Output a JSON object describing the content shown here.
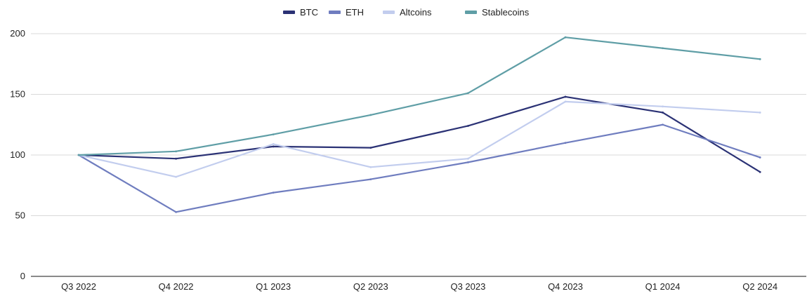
{
  "chart_data": {
    "type": "line",
    "title": "",
    "xlabel": "",
    "ylabel": "",
    "categories": [
      "Q3 2022",
      "Q4 2022",
      "Q1 2023",
      "Q2 2023",
      "Q3 2023",
      "Q4 2023",
      "Q1 2024",
      "Q2 2024"
    ],
    "ylim": [
      0,
      200
    ],
    "yticks": [
      "0",
      "50",
      "100",
      "150",
      "200"
    ],
    "grid": true,
    "legend_position": "top-center",
    "series": [
      {
        "name": "BTC",
        "color": "#2b3275",
        "values": [
          100,
          97,
          107,
          106,
          124,
          148,
          135,
          86
        ]
      },
      {
        "name": "ETH",
        "color": "#6f7dbf",
        "values": [
          100,
          53,
          69,
          80,
          94,
          110,
          125,
          98
        ]
      },
      {
        "name": "Altcoins",
        "color": "#c2cdee",
        "values": [
          100,
          82,
          109,
          90,
          97,
          144,
          140,
          135
        ]
      },
      {
        "name": "Stablecoins",
        "color": "#5f9ea6",
        "values": [
          100,
          103,
          117,
          133,
          151,
          197,
          188,
          179
        ]
      }
    ]
  }
}
